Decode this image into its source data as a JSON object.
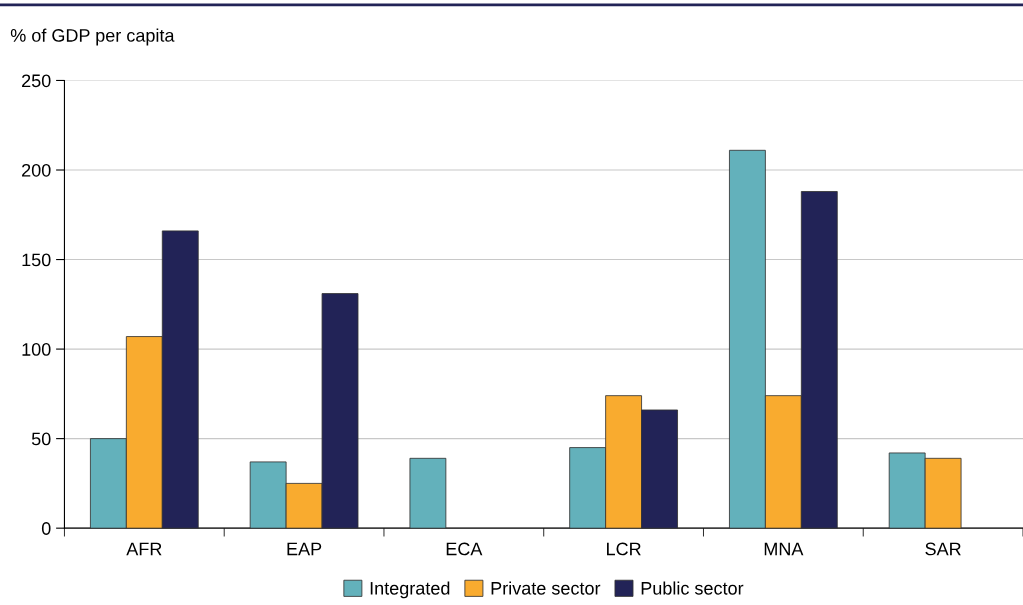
{
  "chart_data": {
    "type": "bar",
    "ylabel": "% of GDP per capita",
    "categories": [
      "AFR",
      "EAP",
      "ECA",
      "LCR",
      "MNA",
      "SAR"
    ],
    "series": [
      {
        "name": "Integrated",
        "color": "#63b1bb",
        "values": [
          50,
          37,
          39,
          45,
          211,
          42
        ]
      },
      {
        "name": "Private sector",
        "color": "#f9ab2f",
        "values": [
          107,
          25,
          null,
          74,
          74,
          39
        ]
      },
      {
        "name": "Public sector",
        "color": "#222357",
        "values": [
          166,
          131,
          null,
          66,
          188,
          null
        ]
      }
    ],
    "ylim": [
      0,
      250
    ],
    "yticks": [
      0,
      50,
      100,
      150,
      200,
      250
    ],
    "grid": "y",
    "legend": "bottom"
  }
}
